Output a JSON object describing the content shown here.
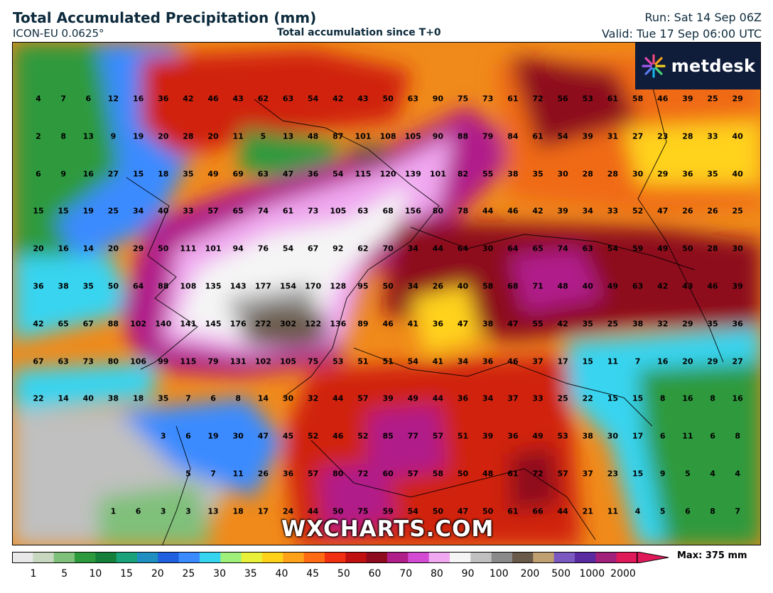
{
  "header": {
    "title": "Total Accumulated Precipitation (mm)",
    "model": "ICON-EU 0.0625°",
    "subtitle": "Total accumulation since T+0",
    "run": "Run: Sat 14 Sep 06Z",
    "valid": "Valid: Tue 17 Sep 06:00 UTC"
  },
  "branding": {
    "logo": "metdesk",
    "watermark": "WXCHARTS.COM"
  },
  "legend": {
    "ticks": [
      "1",
      "5",
      "10",
      "15",
      "20",
      "25",
      "30",
      "35",
      "40",
      "45",
      "50",
      "60",
      "70",
      "80",
      "90",
      "100",
      "200",
      "500",
      "1000",
      "2000"
    ],
    "max_label": "Max: 375 mm"
  },
  "values": [
    [
      "4",
      "7",
      "6",
      "12",
      "16",
      "36",
      "42",
      "46",
      "43",
      "62",
      "63",
      "54",
      "42",
      "43",
      "50",
      "63",
      "90",
      "75",
      "73",
      "61",
      "72",
      "56",
      "53",
      "61",
      "58",
      "46",
      "39",
      "25",
      "29"
    ],
    [
      "2",
      "8",
      "13",
      "9",
      "19",
      "20",
      "28",
      "20",
      "11",
      "5",
      "13",
      "48",
      "87",
      "101",
      "108",
      "105",
      "90",
      "88",
      "79",
      "84",
      "61",
      "54",
      "39",
      "31",
      "27",
      "23",
      "28",
      "33",
      "40"
    ],
    [
      "6",
      "9",
      "16",
      "27",
      "15",
      "18",
      "35",
      "49",
      "69",
      "63",
      "47",
      "36",
      "54",
      "115",
      "120",
      "139",
      "101",
      "82",
      "55",
      "38",
      "35",
      "30",
      "28",
      "28",
      "30",
      "29",
      "36",
      "35",
      "40"
    ],
    [
      "15",
      "15",
      "19",
      "25",
      "34",
      "40",
      "33",
      "57",
      "65",
      "74",
      "61",
      "73",
      "105",
      "63",
      "68",
      "156",
      "80",
      "78",
      "44",
      "46",
      "42",
      "39",
      "34",
      "33",
      "52",
      "47",
      "26",
      "26",
      "25"
    ],
    [
      "20",
      "16",
      "14",
      "20",
      "29",
      "50",
      "111",
      "101",
      "94",
      "76",
      "54",
      "67",
      "92",
      "62",
      "70",
      "34",
      "44",
      "64",
      "30",
      "64",
      "65",
      "74",
      "63",
      "54",
      "59",
      "49",
      "50",
      "28",
      "30"
    ],
    [
      "36",
      "38",
      "35",
      "50",
      "64",
      "88",
      "108",
      "135",
      "143",
      "177",
      "154",
      "170",
      "128",
      "95",
      "50",
      "34",
      "26",
      "40",
      "58",
      "68",
      "71",
      "48",
      "40",
      "49",
      "63",
      "42",
      "43",
      "46",
      "39"
    ],
    [
      "42",
      "65",
      "67",
      "88",
      "102",
      "140",
      "141",
      "145",
      "176",
      "272",
      "302",
      "122",
      "136",
      "89",
      "46",
      "41",
      "36",
      "47",
      "38",
      "47",
      "55",
      "42",
      "35",
      "25",
      "38",
      "32",
      "29",
      "35",
      "36"
    ],
    [
      "67",
      "63",
      "73",
      "80",
      "106",
      "99",
      "115",
      "79",
      "131",
      "102",
      "105",
      "75",
      "53",
      "51",
      "51",
      "54",
      "41",
      "34",
      "36",
      "46",
      "37",
      "17",
      "15",
      "11",
      "7",
      "16",
      "20",
      "29",
      "27"
    ],
    [
      "22",
      "14",
      "40",
      "38",
      "18",
      "35",
      "7",
      "6",
      "8",
      "14",
      "30",
      "32",
      "44",
      "57",
      "39",
      "49",
      "44",
      "36",
      "34",
      "37",
      "33",
      "25",
      "22",
      "15",
      "15",
      "8",
      "16",
      "8",
      "16"
    ],
    [
      "",
      "",
      "",
      "",
      "",
      "3",
      "6",
      "19",
      "30",
      "47",
      "45",
      "52",
      "46",
      "52",
      "85",
      "77",
      "57",
      "51",
      "39",
      "36",
      "49",
      "53",
      "38",
      "30",
      "17",
      "6",
      "11",
      "6",
      "8"
    ],
    [
      "",
      "",
      "",
      "",
      "",
      "",
      "5",
      "7",
      "11",
      "26",
      "36",
      "57",
      "80",
      "72",
      "60",
      "57",
      "58",
      "50",
      "48",
      "61",
      "72",
      "57",
      "37",
      "23",
      "15",
      "9",
      "5",
      "4",
      "4"
    ],
    [
      "",
      "",
      "",
      "1",
      "6",
      "3",
      "3",
      "13",
      "18",
      "17",
      "24",
      "44",
      "50",
      "75",
      "59",
      "54",
      "50",
      "47",
      "50",
      "61",
      "66",
      "44",
      "21",
      "11",
      "4",
      "5",
      "6",
      "8",
      "7"
    ]
  ],
  "colors": {
    "scale": [
      "#e8e8e8",
      "#c8d8c0",
      "#7fc07a",
      "#2e9a3e",
      "#15803a",
      "#1aa37a",
      "#1e8fc0",
      "#1f5fe0",
      "#3a8bff",
      "#37d4f0",
      "#9ef07a",
      "#e8f03a",
      "#ffd21a",
      "#ffa21a",
      "#ff6a14",
      "#f03010",
      "#c01010",
      "#8e0c1e",
      "#b01e8a",
      "#d24bd2",
      "#f0a8f0",
      "#f5f5f5",
      "#c0c0c0",
      "#8a8a8a",
      "#6a5a4a",
      "#c0a070",
      "#7a5ac0",
      "#5a2aa0",
      "#a0207a",
      "#e01a5a"
    ],
    "frame": "#0f1c3a"
  }
}
